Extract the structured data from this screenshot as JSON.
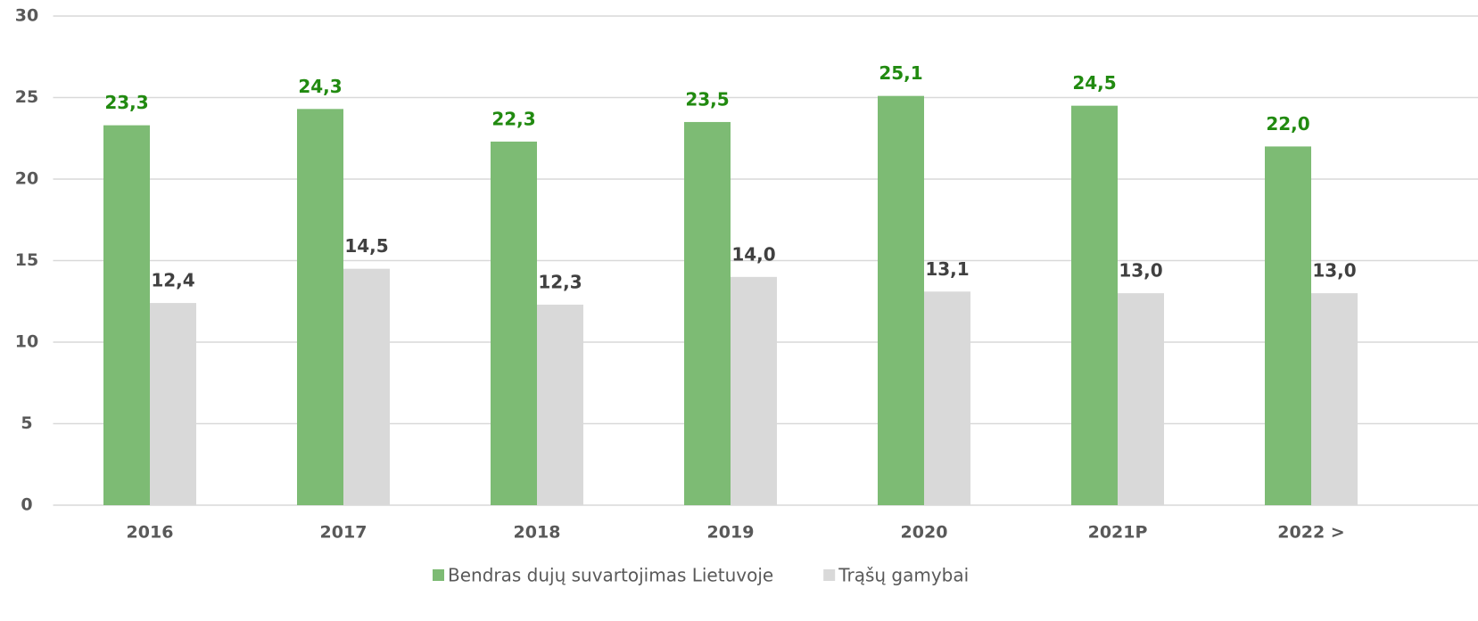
{
  "chart_data": {
    "type": "bar",
    "categories": [
      "2016",
      "2017",
      "2018",
      "2019",
      "2020",
      "2021P",
      "2022 >"
    ],
    "series": [
      {
        "name": "Bendras dujų suvartojimas Lietuvoje",
        "color": "#7dbb74",
        "label_color": "#218a10",
        "values": [
          23.3,
          24.3,
          22.3,
          23.5,
          25.1,
          24.5,
          22.0
        ],
        "value_labels": [
          "23,3",
          "24,3",
          "22,3",
          "23,5",
          "25,1",
          "24,5",
          "22,0"
        ]
      },
      {
        "name": "Trąšų gamybai",
        "color": "#d9d9d9",
        "label_color": "#404040",
        "values": [
          12.4,
          14.5,
          12.3,
          14.0,
          13.1,
          13.0,
          13.0
        ],
        "value_labels": [
          "12,4",
          "14,5",
          "12,3",
          "14,0",
          "13,1",
          "13,0",
          "13,0"
        ]
      }
    ],
    "ylim": [
      0,
      30
    ],
    "yticks": [
      0,
      5,
      10,
      15,
      20,
      25,
      30
    ],
    "grid": true,
    "legend": "bottom"
  }
}
